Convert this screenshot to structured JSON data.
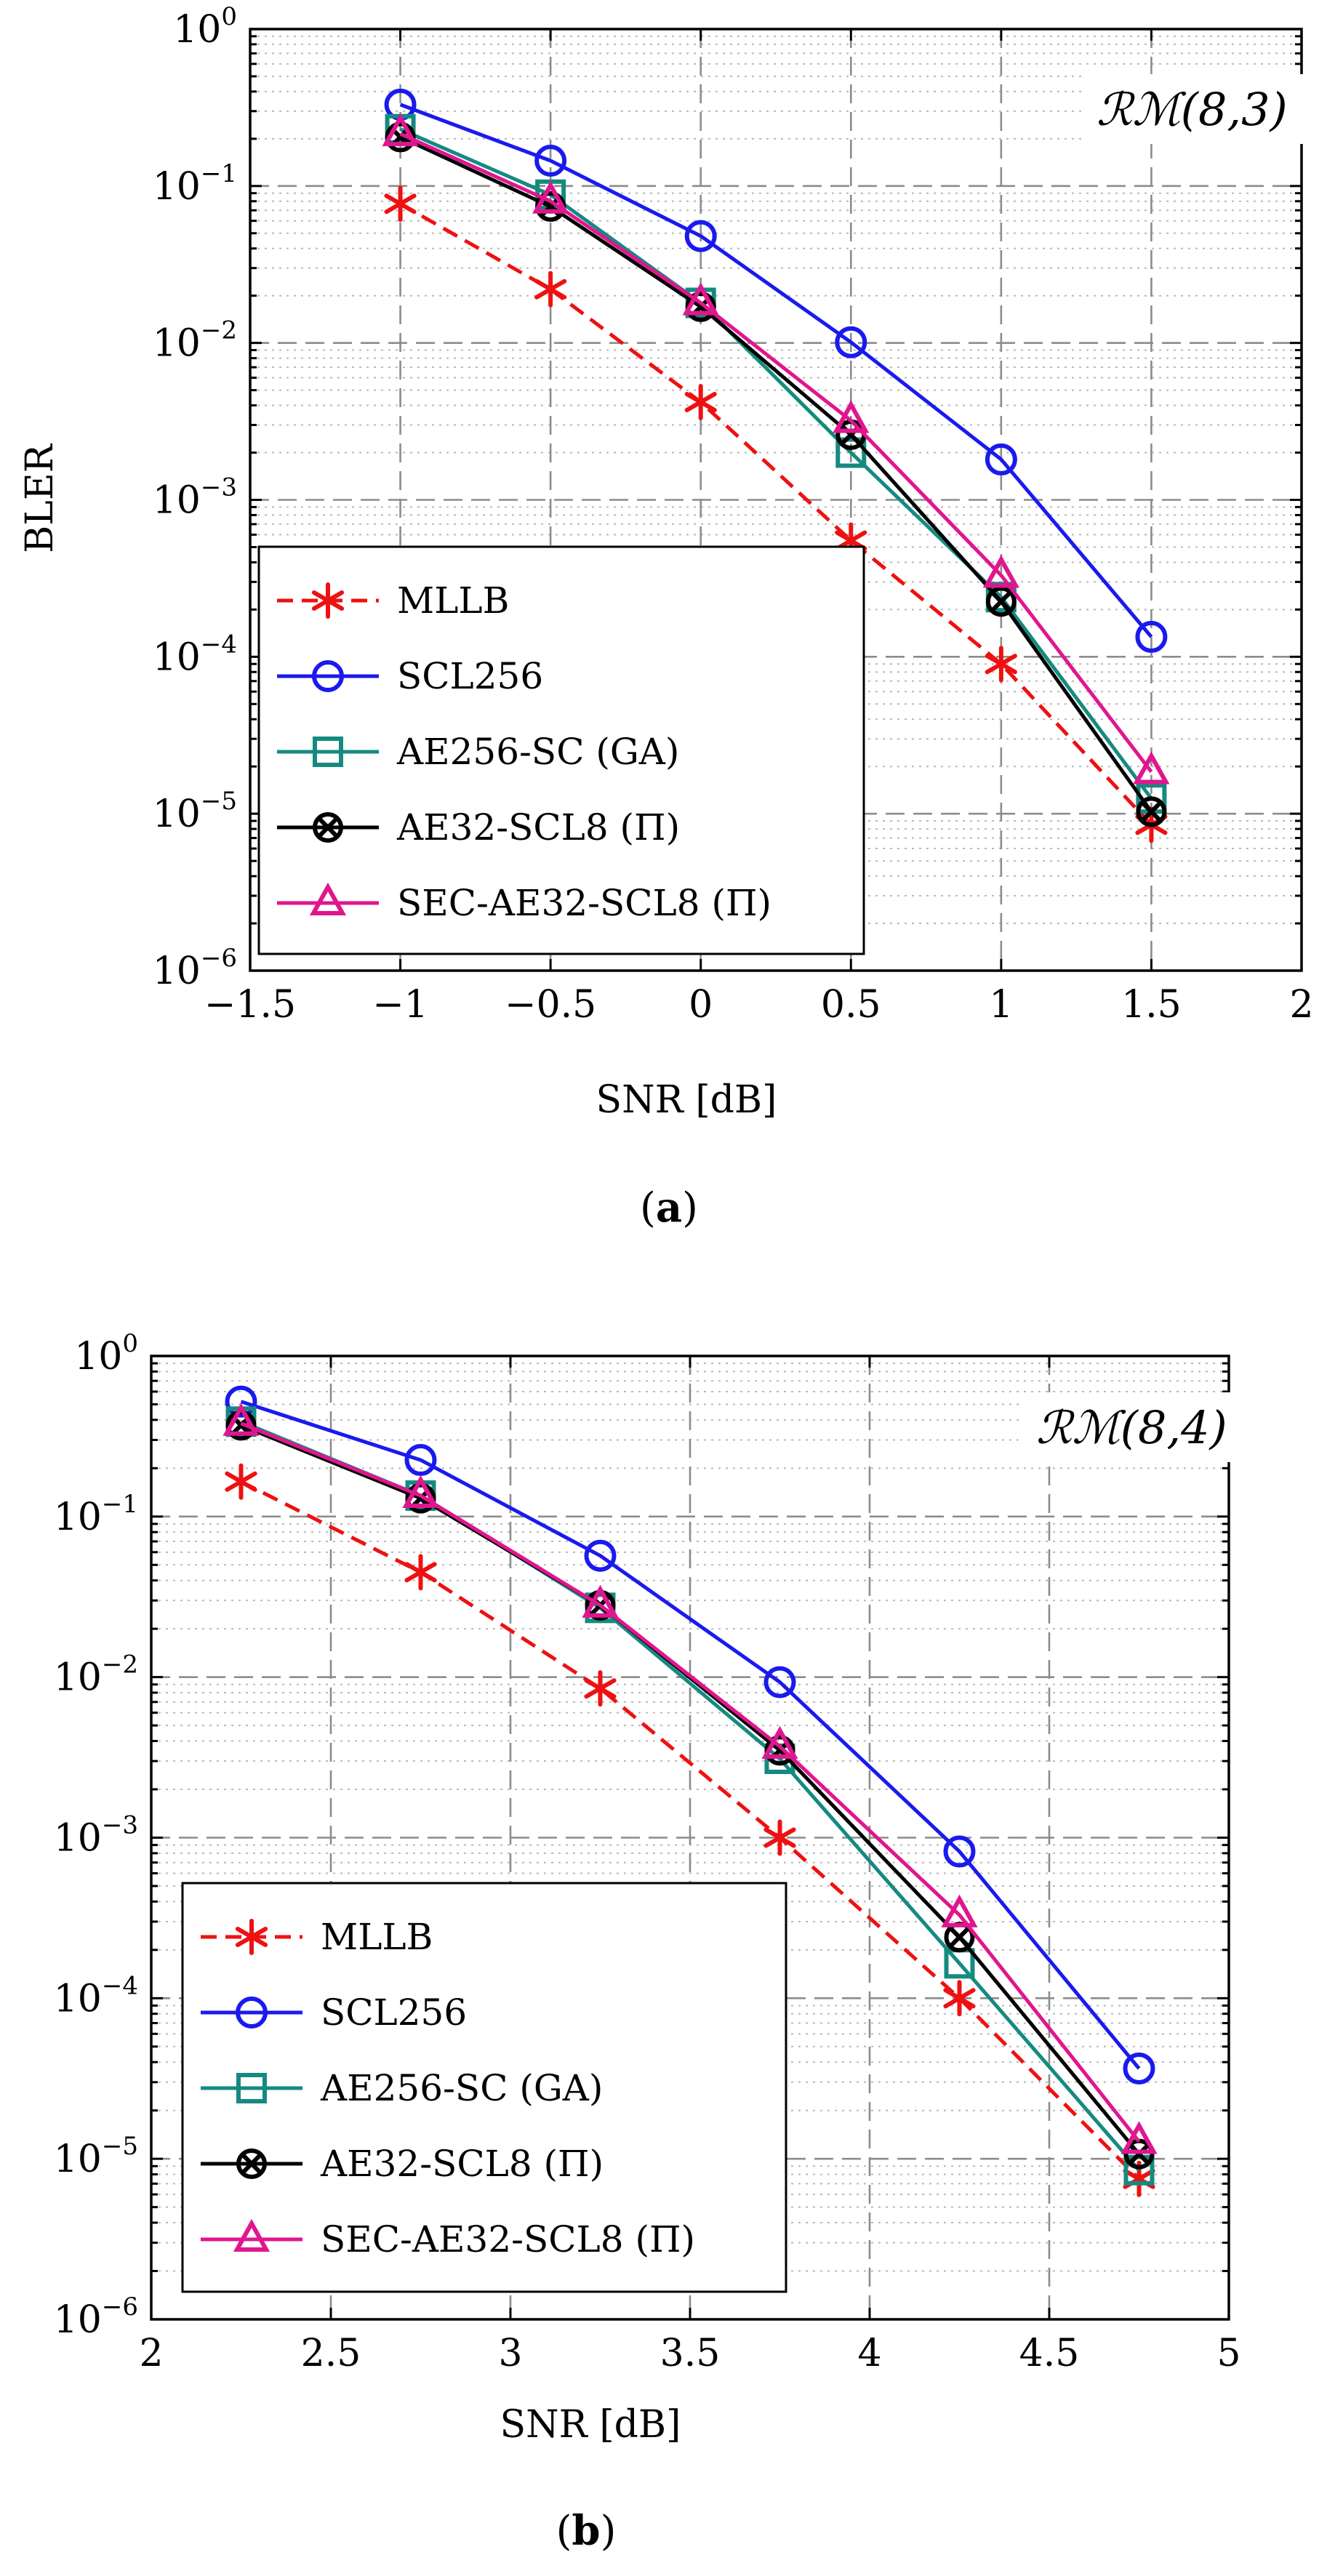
{
  "chart_data": [
    {
      "type": "line",
      "panel": "a",
      "caption": "(a)",
      "code_label": "ℛℳ(8,3)",
      "xlabel": "SNR [dB]",
      "ylabel": "BLER",
      "yscale": "log",
      "xlim": [
        -1.5,
        2
      ],
      "ylim": [
        1e-06,
        1
      ],
      "x_ticks": [
        -1.5,
        -1,
        -0.5,
        0,
        0.5,
        1,
        1.5,
        2
      ],
      "x_tick_labels": [
        "−1.5",
        "−1",
        "−0.5",
        "0",
        "0.5",
        "1",
        "1.5",
        "2"
      ],
      "y_ticks_exp": [
        0,
        -1,
        -2,
        -3,
        -4,
        -5,
        -6
      ],
      "grid": true,
      "legend_position": "bottom-left",
      "series": [
        {
          "name": "MLLB",
          "marker": "star",
          "dash": true,
          "color": "#ee1111",
          "x": [
            -1,
            -0.5,
            0,
            0.5,
            1,
            1.5
          ],
          "y": [
            0.077,
            0.022,
            0.0042,
            0.00055,
            9e-05,
            8.5e-06
          ]
        },
        {
          "name": "SCL256",
          "marker": "circle",
          "dash": false,
          "color": "#1a1aee",
          "x": [
            -1,
            -0.5,
            0,
            0.5,
            1,
            1.5
          ],
          "y": [
            0.33,
            0.145,
            0.048,
            0.0101,
            0.00181,
            0.000134
          ]
        },
        {
          "name": "AE256-SC (GA)",
          "marker": "square",
          "dash": false,
          "color": "#158a80",
          "x": [
            -1,
            -0.5,
            0,
            0.5,
            1,
            1.5
          ],
          "y": [
            0.23,
            0.088,
            0.018,
            0.002,
            0.00024,
            1.25e-05
          ]
        },
        {
          "name": "AE32-SCL8 (Π)",
          "marker": "otimes",
          "dash": false,
          "color": "#000000",
          "x": [
            -1,
            -0.5,
            0,
            0.5,
            1,
            1.5
          ],
          "y": [
            0.205,
            0.074,
            0.017,
            0.0026,
            0.000225,
            1.03e-05
          ]
        },
        {
          "name": "SEC-AE32-SCL8 (Π)",
          "marker": "triangle",
          "dash": false,
          "color": "#e0168f",
          "x": [
            -1,
            -0.5,
            0,
            0.5,
            1,
            1.5
          ],
          "y": [
            0.215,
            0.08,
            0.018,
            0.0032,
            0.00033,
            1.85e-05
          ]
        }
      ]
    },
    {
      "type": "line",
      "panel": "b",
      "caption": "(b)",
      "code_label": "ℛℳ(8,4)",
      "xlabel": "SNR [dB]",
      "ylabel": "",
      "yscale": "log",
      "xlim": [
        2,
        5
      ],
      "ylim": [
        1e-06,
        1
      ],
      "x_ticks": [
        2,
        2.5,
        3,
        3.5,
        4,
        4.5,
        5
      ],
      "x_tick_labels": [
        "2",
        "2.5",
        "3",
        "3.5",
        "4",
        "4.5",
        "5"
      ],
      "y_ticks_exp": [
        0,
        -1,
        -2,
        -3,
        -4,
        -5,
        -6
      ],
      "grid": true,
      "legend_position": "bottom-left",
      "series": [
        {
          "name": "MLLB",
          "marker": "star",
          "dash": true,
          "color": "#ee1111",
          "x": [
            2.25,
            2.75,
            3.25,
            3.75,
            4.25,
            4.75
          ],
          "y": [
            0.165,
            0.045,
            0.0085,
            0.001,
            0.0001,
            7.5e-06
          ]
        },
        {
          "name": "SCL256",
          "marker": "circle",
          "dash": false,
          "color": "#1a1aee",
          "x": [
            2.25,
            2.75,
            3.25,
            3.75,
            4.25,
            4.75
          ],
          "y": [
            0.52,
            0.225,
            0.057,
            0.0093,
            0.00082,
            3.65e-05
          ]
        },
        {
          "name": "AE256-SC (GA)",
          "marker": "square",
          "dash": false,
          "color": "#158a80",
          "x": [
            2.25,
            2.75,
            3.25,
            3.75,
            4.25,
            4.75
          ],
          "y": [
            0.39,
            0.135,
            0.027,
            0.0031,
            0.000165,
            8.5e-06
          ]
        },
        {
          "name": "AE32-SCL8 (Π)",
          "marker": "otimes",
          "dash": false,
          "color": "#000000",
          "x": [
            2.25,
            2.75,
            3.25,
            3.75,
            4.25,
            4.75
          ],
          "y": [
            0.37,
            0.13,
            0.028,
            0.0035,
            0.00024,
            1.07e-05
          ]
        },
        {
          "name": "SEC-AE32-SCL8 (Π)",
          "marker": "triangle",
          "dash": false,
          "color": "#e0168f",
          "x": [
            2.25,
            2.75,
            3.25,
            3.75,
            4.25,
            4.75
          ],
          "y": [
            0.38,
            0.135,
            0.028,
            0.0037,
            0.00033,
            1.28e-05
          ]
        }
      ]
    }
  ]
}
